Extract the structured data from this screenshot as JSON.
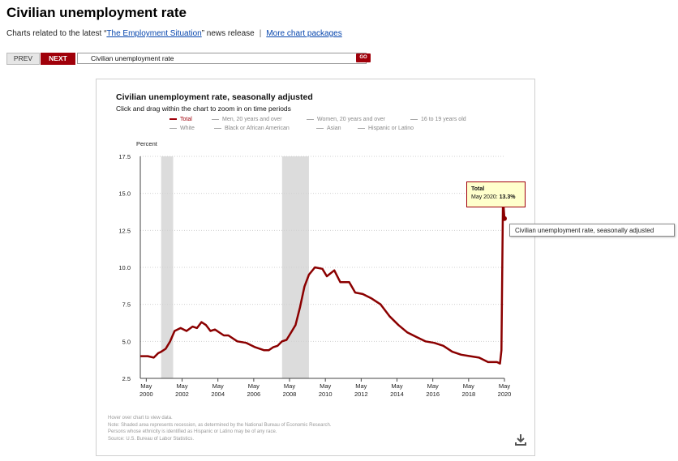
{
  "page": {
    "title": "Civilian unemployment rate",
    "related_prefix": "Charts related to the latest “",
    "related_link": "The Employment Situation",
    "related_suffix": "” news release",
    "separator": "|",
    "more_link": "More chart packages"
  },
  "nav": {
    "prev_label": "PREV",
    "next_label": "NEXT",
    "selected_option": "Civilian unemployment rate",
    "go_label": "GO"
  },
  "legend": [
    {
      "label": "Total",
      "active": true
    },
    {
      "label": "Men, 20 years and over",
      "active": false
    },
    {
      "label": "Women, 20 years and over",
      "active": false
    },
    {
      "label": "16 to 19 years old",
      "active": false
    },
    {
      "label": "White",
      "active": false
    },
    {
      "label": "Black or African American",
      "active": false
    },
    {
      "label": "Asian",
      "active": false
    },
    {
      "label": "Hispanic or Latino",
      "active": false
    }
  ],
  "tooltip": {
    "series": "Total",
    "date_label": "May 2020: ",
    "value_label": "13.3%"
  },
  "native_tooltip": "Civilian unemployment rate, seasonally adjusted",
  "notes": [
    "Hover over chart to view data.",
    "Note: Shaded area represents recession, as determined by the National Bureau of Economic Research.",
    "Persons whose ethnicity is identified as Hispanic or Latino may be of any race.",
    "Source: U.S. Bureau of Labor Statistics."
  ],
  "icons": {
    "download": "download-icon",
    "dropdown": "chevron-down-icon"
  },
  "colors": {
    "accent": "#a0000a",
    "line": "#8b0000",
    "recession": "#dcdcdc",
    "tooltip_bg": "#ffffcc"
  },
  "chart_data": {
    "type": "line",
    "title": "Civilian unemployment rate, seasonally adjusted",
    "subtitle": "Click and drag within the chart to zoom in on time periods",
    "ylabel": "Percent",
    "xlabel": "",
    "ylim": [
      2.5,
      17.5
    ],
    "yticks": [
      "17.5",
      "15.0",
      "12.5",
      "10.0",
      "7.5",
      "5.0",
      "2.5"
    ],
    "xlim": [
      "2000-01",
      "2020-05"
    ],
    "xticks": [
      {
        "month": "May",
        "year": "2000"
      },
      {
        "month": "May",
        "year": "2002"
      },
      {
        "month": "May",
        "year": "2004"
      },
      {
        "month": "May",
        "year": "2006"
      },
      {
        "month": "May",
        "year": "2008"
      },
      {
        "month": "May",
        "year": "2010"
      },
      {
        "month": "May",
        "year": "2012"
      },
      {
        "month": "May",
        "year": "2014"
      },
      {
        "month": "May",
        "year": "2016"
      },
      {
        "month": "May",
        "year": "2018"
      },
      {
        "month": "May",
        "year": "2020"
      }
    ],
    "grid": "horizontal-dotted",
    "legend_position": "top",
    "recessions": [
      [
        "2001-03",
        "2001-11"
      ],
      [
        "2007-12",
        "2009-06"
      ]
    ],
    "series": [
      {
        "name": "Total",
        "points": [
          [
            "2000-01",
            4.0
          ],
          [
            "2000-06",
            4.0
          ],
          [
            "2000-10",
            3.9
          ],
          [
            "2001-01",
            4.2
          ],
          [
            "2001-03",
            4.3
          ],
          [
            "2001-06",
            4.5
          ],
          [
            "2001-09",
            5.0
          ],
          [
            "2001-12",
            5.7
          ],
          [
            "2002-04",
            5.9
          ],
          [
            "2002-08",
            5.7
          ],
          [
            "2002-12",
            6.0
          ],
          [
            "2003-03",
            5.9
          ],
          [
            "2003-06",
            6.3
          ],
          [
            "2003-09",
            6.1
          ],
          [
            "2003-12",
            5.7
          ],
          [
            "2004-03",
            5.8
          ],
          [
            "2004-06",
            5.6
          ],
          [
            "2004-09",
            5.4
          ],
          [
            "2004-12",
            5.4
          ],
          [
            "2005-06",
            5.0
          ],
          [
            "2005-12",
            4.9
          ],
          [
            "2006-06",
            4.6
          ],
          [
            "2006-12",
            4.4
          ],
          [
            "2007-03",
            4.4
          ],
          [
            "2007-06",
            4.6
          ],
          [
            "2007-09",
            4.7
          ],
          [
            "2007-12",
            5.0
          ],
          [
            "2008-03",
            5.1
          ],
          [
            "2008-06",
            5.6
          ],
          [
            "2008-09",
            6.1
          ],
          [
            "2008-12",
            7.3
          ],
          [
            "2009-03",
            8.7
          ],
          [
            "2009-06",
            9.5
          ],
          [
            "2009-10",
            10.0
          ],
          [
            "2010-03",
            9.9
          ],
          [
            "2010-06",
            9.4
          ],
          [
            "2010-11",
            9.8
          ],
          [
            "2011-03",
            9.0
          ],
          [
            "2011-09",
            9.0
          ],
          [
            "2012-01",
            8.3
          ],
          [
            "2012-06",
            8.2
          ],
          [
            "2012-12",
            7.9
          ],
          [
            "2013-06",
            7.5
          ],
          [
            "2013-12",
            6.7
          ],
          [
            "2014-06",
            6.1
          ],
          [
            "2014-12",
            5.6
          ],
          [
            "2015-06",
            5.3
          ],
          [
            "2015-12",
            5.0
          ],
          [
            "2016-06",
            4.9
          ],
          [
            "2016-12",
            4.7
          ],
          [
            "2017-06",
            4.3
          ],
          [
            "2017-12",
            4.1
          ],
          [
            "2018-06",
            4.0
          ],
          [
            "2018-12",
            3.9
          ],
          [
            "2019-06",
            3.6
          ],
          [
            "2019-12",
            3.6
          ],
          [
            "2020-02",
            3.5
          ],
          [
            "2020-03",
            4.4
          ],
          [
            "2020-04",
            14.7
          ],
          [
            "2020-05",
            13.3
          ]
        ]
      }
    ]
  }
}
